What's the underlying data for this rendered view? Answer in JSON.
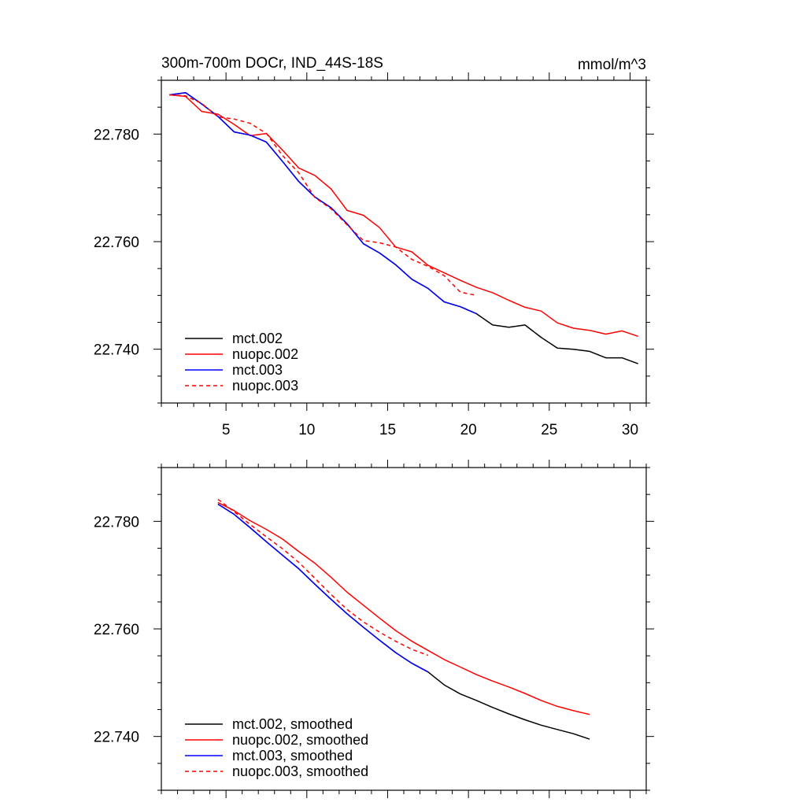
{
  "chart_data": [
    {
      "type": "line",
      "title": "300m-700m DOCr, IND_44S-18S",
      "units": "mmol/m^3",
      "xlim": [
        1,
        31
      ],
      "ylim": [
        22.73,
        22.79
      ],
      "xticks": [
        5,
        10,
        15,
        20,
        25,
        30
      ],
      "yticks": [
        22.74,
        22.76,
        22.78
      ],
      "ytick_labels": [
        "22.740",
        "22.760",
        "22.780"
      ],
      "legend_position": "bottom-left",
      "series": [
        {
          "name": "mct.002",
          "color": "#000000",
          "dash": false,
          "x": [
            1.5,
            2.5,
            3.5,
            4.5,
            5.5,
            6.5,
            7.5,
            8.5,
            9.5,
            10.5,
            11.5,
            12.5,
            13.5,
            14.5,
            15.5,
            16.5,
            17.5,
            18.5,
            19.5,
            20.5,
            21.5,
            22.5,
            23.5,
            24.5,
            25.5,
            26.5,
            27.5,
            28.5,
            29.5,
            30.5
          ],
          "y": [
            22.7873,
            22.7877,
            22.7856,
            22.7833,
            22.7804,
            22.7798,
            22.7785,
            22.7749,
            22.7712,
            22.7683,
            22.7663,
            22.7633,
            22.7596,
            22.7579,
            22.7557,
            22.753,
            22.7513,
            22.7488,
            22.7479,
            22.7466,
            22.7445,
            22.7441,
            22.7445,
            22.7422,
            22.7402,
            22.74,
            22.7396,
            22.7384,
            22.7384,
            22.7373
          ]
        },
        {
          "name": "nuopc.002",
          "color": "#ff0000",
          "dash": false,
          "x": [
            1.5,
            2.5,
            3.5,
            4.5,
            5.5,
            6.5,
            7.5,
            8.5,
            9.5,
            10.5,
            11.5,
            12.5,
            13.5,
            14.5,
            15.5,
            16.5,
            17.5,
            18.5,
            19.5,
            20.5,
            21.5,
            22.5,
            23.5,
            24.5,
            25.5,
            26.5,
            27.5,
            28.5,
            29.5,
            30.5
          ],
          "y": [
            22.7873,
            22.787,
            22.7842,
            22.7837,
            22.7818,
            22.7797,
            22.7801,
            22.777,
            22.7737,
            22.7723,
            22.7698,
            22.7658,
            22.7649,
            22.7626,
            22.759,
            22.7581,
            22.7556,
            22.7542,
            22.7528,
            22.7515,
            22.7505,
            22.7491,
            22.7478,
            22.7471,
            22.7449,
            22.7439,
            22.7435,
            22.7428,
            22.7434,
            22.7424
          ]
        },
        {
          "name": "mct.003",
          "color": "#0000ff",
          "dash": false,
          "x": [
            1.5,
            2.5,
            3.5,
            4.5,
            5.5,
            6.5,
            7.5,
            8.5,
            9.5,
            10.5,
            11.5,
            12.5,
            13.5,
            14.5,
            15.5,
            16.5,
            17.5,
            18.5,
            19.5,
            20.5
          ],
          "y": [
            22.7873,
            22.7877,
            22.7856,
            22.7833,
            22.7804,
            22.7798,
            22.7785,
            22.7749,
            22.7712,
            22.7683,
            22.7663,
            22.7633,
            22.7596,
            22.7579,
            22.7557,
            22.753,
            22.7513,
            22.7488,
            22.7479,
            22.7466
          ]
        },
        {
          "name": "nuopc.003",
          "color": "#ff0000",
          "dash": true,
          "x": [
            1.5,
            2.5,
            3.5,
            4.5,
            5.5,
            6.5,
            7.5,
            8.5,
            9.5,
            10.5,
            11.5,
            12.5,
            13.5,
            14.5,
            15.5,
            16.5,
            17.5,
            18.5,
            19.5,
            20.5
          ],
          "y": [
            22.7873,
            22.7871,
            22.7857,
            22.7832,
            22.7828,
            22.782,
            22.7801,
            22.776,
            22.7728,
            22.7682,
            22.7661,
            22.7631,
            22.7602,
            22.7598,
            22.759,
            22.7567,
            22.7554,
            22.7537,
            22.7506,
            22.75
          ]
        }
      ]
    },
    {
      "type": "line",
      "title": "",
      "units": "",
      "xlim": [
        1,
        31
      ],
      "ylim": [
        22.73,
        22.79
      ],
      "xticks": [
        5,
        10,
        15,
        20,
        25,
        30
      ],
      "yticks": [
        22.74,
        22.76,
        22.78
      ],
      "ytick_labels": [
        "22.740",
        "22.760",
        "22.780"
      ],
      "legend_position": "bottom-left",
      "series": [
        {
          "name": "mct.002, smoothed",
          "color": "#000000",
          "dash": false,
          "x": [
            4.5,
            5.5,
            6.5,
            7.5,
            8.5,
            9.5,
            10.5,
            11.5,
            12.5,
            13.5,
            14.5,
            15.5,
            16.5,
            17.5,
            18.5,
            19.5,
            20.5,
            21.5,
            22.5,
            23.5,
            24.5,
            25.5,
            26.5,
            27.5
          ],
          "y": [
            22.7832,
            22.7813,
            22.7788,
            22.7762,
            22.7737,
            22.7712,
            22.7683,
            22.7655,
            22.7628,
            22.7603,
            22.7579,
            22.7556,
            22.7536,
            22.752,
            22.7496,
            22.7479,
            22.7467,
            22.7454,
            22.7442,
            22.7431,
            22.7421,
            22.7413,
            22.7405,
            22.7395
          ]
        },
        {
          "name": "nuopc.002, smoothed",
          "color": "#ff0000",
          "dash": false,
          "x": [
            4.5,
            5.5,
            6.5,
            7.5,
            8.5,
            9.5,
            10.5,
            11.5,
            12.5,
            13.5,
            14.5,
            15.5,
            16.5,
            17.5,
            18.5,
            19.5,
            20.5,
            21.5,
            22.5,
            23.5,
            24.5,
            25.5,
            26.5,
            27.5
          ],
          "y": [
            22.7835,
            22.782,
            22.7801,
            22.7785,
            22.7767,
            22.7744,
            22.7722,
            22.7696,
            22.7668,
            22.7644,
            22.762,
            22.7597,
            22.7577,
            22.756,
            22.7543,
            22.7529,
            22.7515,
            22.7503,
            22.7492,
            22.748,
            22.7467,
            22.7456,
            22.7448,
            22.7441
          ]
        },
        {
          "name": "mct.003, smoothed",
          "color": "#0000ff",
          "dash": false,
          "x": [
            4.5,
            5.5,
            6.5,
            7.5,
            8.5,
            9.5,
            10.5,
            11.5,
            12.5,
            13.5,
            14.5,
            15.5,
            16.5,
            17.5
          ],
          "y": [
            22.7832,
            22.7813,
            22.7788,
            22.7762,
            22.7737,
            22.7712,
            22.7683,
            22.7655,
            22.7628,
            22.7603,
            22.7579,
            22.7556,
            22.7536,
            22.752
          ]
        },
        {
          "name": "nuopc.003, smoothed",
          "color": "#ff0000",
          "dash": true,
          "x": [
            4.5,
            5.5,
            6.5,
            7.5,
            8.5,
            9.5,
            10.5,
            11.5,
            12.5,
            13.5,
            14.5,
            15.5,
            16.5,
            17.5
          ],
          "y": [
            22.7841,
            22.7818,
            22.7794,
            22.7771,
            22.7749,
            22.7724,
            22.7694,
            22.7664,
            22.7636,
            22.7613,
            22.7594,
            22.7577,
            22.7562,
            22.7551
          ]
        }
      ]
    }
  ]
}
